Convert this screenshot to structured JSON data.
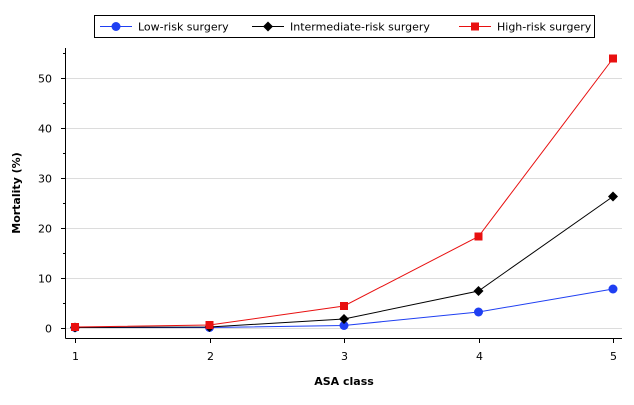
{
  "chart_data": {
    "type": "line",
    "x": [
      1,
      2,
      3,
      4,
      5
    ],
    "xticks": [
      "1",
      "2",
      "3",
      "4",
      "5"
    ],
    "yticks": [
      "0",
      "10",
      "20",
      "30",
      "40",
      "50"
    ],
    "xlabel": "ASA class",
    "ylabel": "Mortality (%)",
    "xlim": [
      1,
      5
    ],
    "ylim": [
      -2,
      56
    ],
    "grid": "horizontal",
    "legend": "top",
    "series": [
      {
        "name": "Low-risk surgery",
        "values": [
          0.1,
          0.1,
          0.5,
          3.2,
          7.8
        ],
        "color": "#1f3ff2",
        "marker": "circle"
      },
      {
        "name": "Intermediate-risk surgery",
        "values": [
          0.1,
          0.2,
          1.8,
          7.4,
          26.3
        ],
        "color": "#000000",
        "marker": "diamond"
      },
      {
        "name": "High-risk surgery",
        "values": [
          0.2,
          0.6,
          4.4,
          18.3,
          53.9
        ],
        "color": "#e81010",
        "marker": "square"
      }
    ]
  }
}
